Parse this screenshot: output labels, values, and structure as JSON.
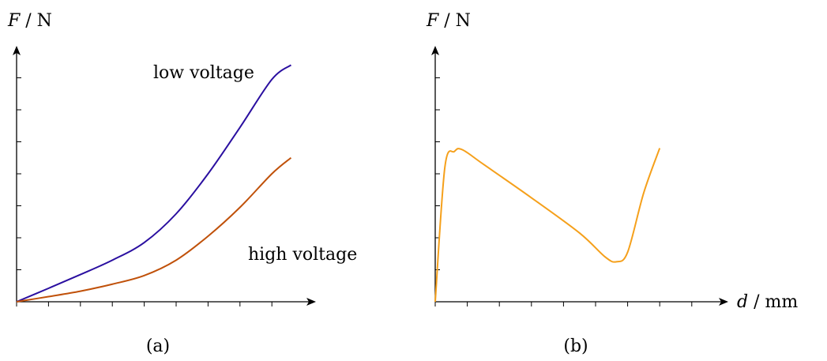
{
  "chart_data": [
    {
      "type": "line",
      "caption": "(a)",
      "ylabel_var": "F",
      "ylabel_unit": "N",
      "xlabel_var": "",
      "xlabel_unit": "",
      "xlim": [
        0,
        9.5
      ],
      "ylim": [
        0,
        8.0
      ],
      "grid": false,
      "tick_labels": "none",
      "series": [
        {
          "name": "low voltage",
          "color": "#2a0fa0",
          "x": [
            0,
            1,
            2,
            3,
            4,
            5,
            6,
            7,
            8,
            8.6
          ],
          "y": [
            0,
            0.42,
            0.85,
            1.3,
            1.85,
            2.75,
            4.0,
            5.45,
            6.95,
            7.4
          ]
        },
        {
          "name": "high voltage",
          "color": "#c0510a",
          "x": [
            0,
            1,
            2,
            3,
            4,
            5,
            6,
            7,
            8,
            8.6
          ],
          "y": [
            0,
            0.16,
            0.33,
            0.55,
            0.82,
            1.3,
            2.05,
            2.95,
            4.0,
            4.5
          ]
        }
      ]
    },
    {
      "type": "line",
      "caption": "(b)",
      "ylabel_var": "F",
      "ylabel_unit": "N",
      "xlabel_var": "d",
      "xlabel_unit": "mm",
      "xlim": [
        0,
        9.5
      ],
      "ylim": [
        0,
        8.0
      ],
      "grid": false,
      "tick_labels": "none",
      "series": [
        {
          "name": "",
          "color": "#f5a01b",
          "x": [
            0,
            0.3,
            0.6,
            0.85,
            1.5,
            3,
            4.5,
            5.3,
            5.65,
            6,
            6.5,
            7
          ],
          "y": [
            0,
            4.2,
            4.7,
            4.75,
            4.3,
            3.25,
            2.15,
            1.4,
            1.25,
            1.55,
            3.4,
            4.8
          ]
        }
      ]
    }
  ]
}
